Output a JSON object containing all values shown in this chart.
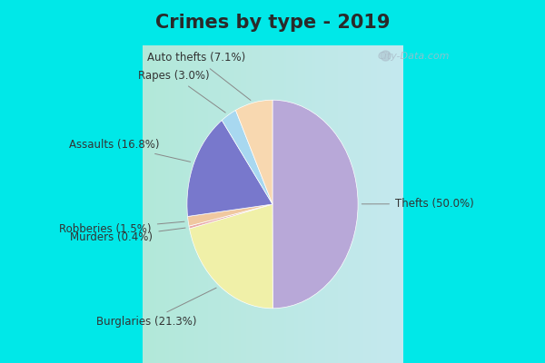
{
  "title": "Crimes by type - 2019",
  "title_fontsize": 15,
  "title_color": "#2a2a2a",
  "labels": [
    "Thefts",
    "Burglaries",
    "Murders",
    "Robberies",
    "Assaults",
    "Rapes",
    "Auto thefts"
  ],
  "values": [
    50.0,
    21.3,
    0.4,
    1.5,
    16.8,
    3.0,
    7.1
  ],
  "colors": [
    "#b8a8d8",
    "#f0f0a8",
    "#e8a8a8",
    "#f0c8a0",
    "#7878cc",
    "#a8d8f0",
    "#f8d8b0"
  ],
  "bg_top_color": "#00e8e8",
  "bg_main_color": "#d8ede0",
  "label_fontsize": 8.5,
  "watermark": "City-Data.com",
  "startangle": 90
}
